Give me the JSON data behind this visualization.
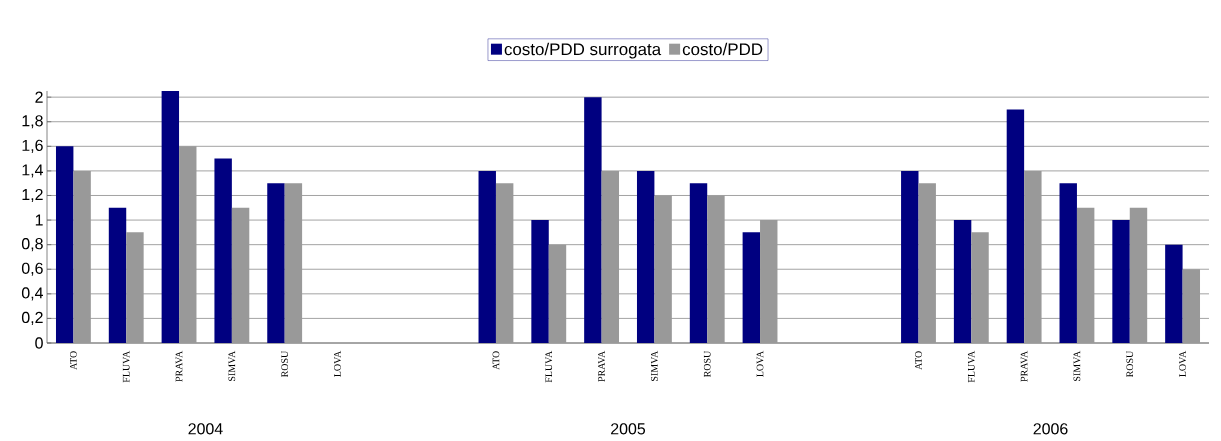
{
  "chart_data": {
    "type": "bar",
    "categories": [
      "ATO",
      "FLUVA",
      "PRAVA",
      "SIMVA",
      "ROSU",
      "LOVA",
      null,
      null,
      "ATO",
      "FLUVA",
      "PRAVA",
      "SIMVA",
      "ROSU",
      "LOVA",
      null,
      null,
      "ATO",
      "FLUVA",
      "PRAVA",
      "SIMVA",
      "ROSU",
      "LOVA"
    ],
    "series": [
      {
        "name": "costo/PDD surrogata",
        "color": "#000080",
        "values": [
          1.6,
          1.1,
          2.05,
          1.5,
          1.3,
          null,
          null,
          null,
          1.4,
          1.0,
          2.0,
          1.4,
          1.3,
          0.9,
          null,
          null,
          1.4,
          1.0,
          1.9,
          1.3,
          1.0,
          0.8
        ]
      },
      {
        "name": "costo/PDD",
        "color": "#999999",
        "values": [
          1.4,
          0.9,
          1.6,
          1.1,
          1.3,
          null,
          null,
          null,
          1.3,
          0.8,
          1.4,
          1.2,
          1.2,
          1.0,
          null,
          null,
          1.3,
          0.9,
          1.4,
          1.1,
          1.1,
          0.6
        ]
      }
    ],
    "ylim": [
      0,
      2.05
    ],
    "yticks": [
      0,
      {
        "value": 0.2,
        "label": "0,2"
      },
      {
        "value": 0.4,
        "label": "0,4"
      },
      {
        "value": 0.6,
        "label": "0,6"
      },
      {
        "value": 0.8,
        "label": "0,8"
      },
      1,
      {
        "value": 1.2,
        "label": "1,2"
      },
      {
        "value": 1.4,
        "label": "1,4"
      },
      {
        "value": 1.6,
        "label": "1,6"
      },
      {
        "value": 1.8,
        "label": "1,8"
      },
      2
    ],
    "grid": "y",
    "legend": "top",
    "annotations": [
      "2004",
      "2005",
      "2006"
    ]
  }
}
